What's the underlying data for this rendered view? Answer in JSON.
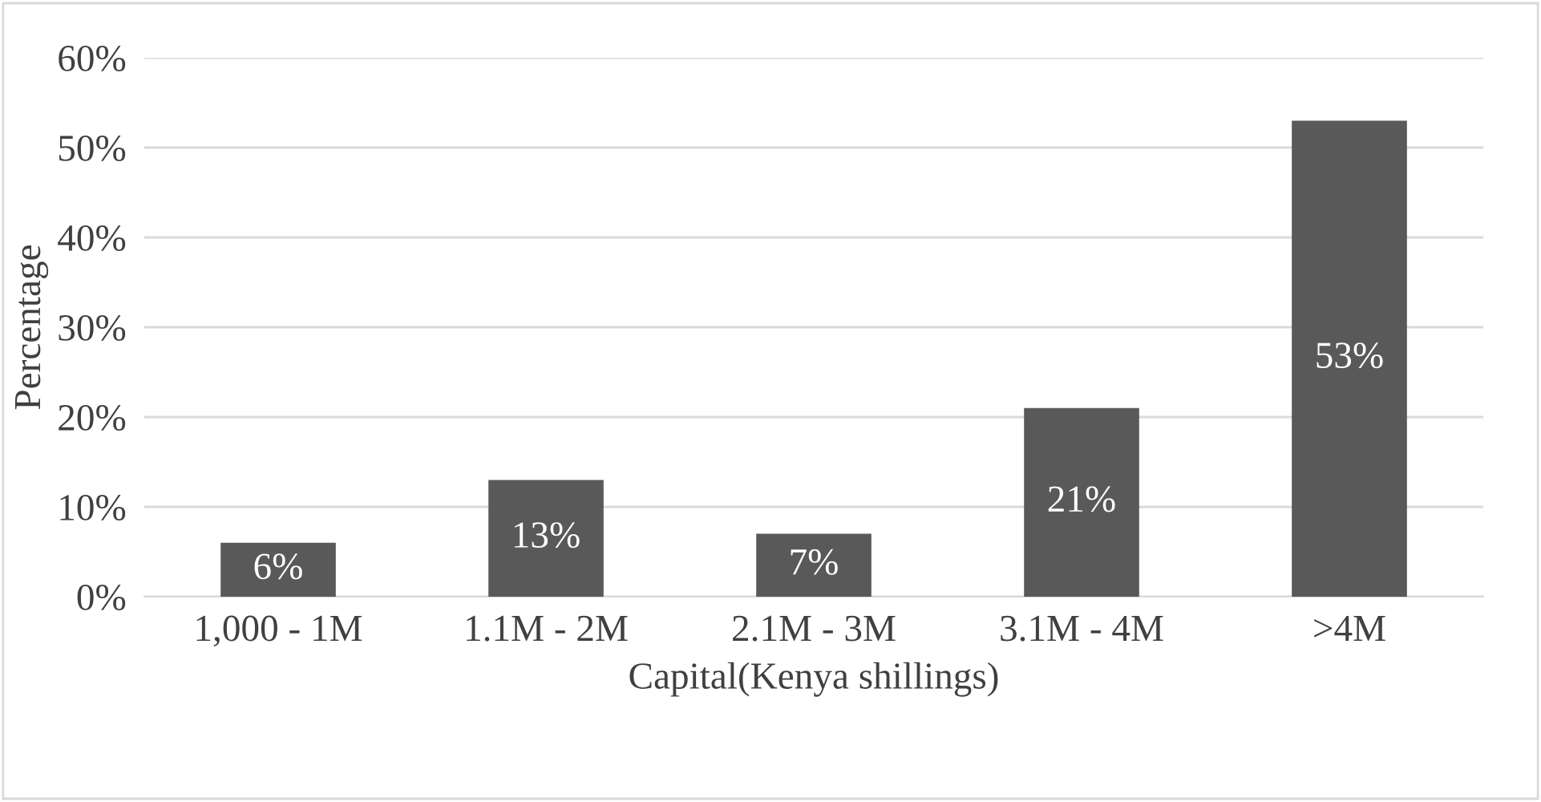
{
  "chart_data": {
    "type": "bar",
    "xlabel": "Capital(Kenya shillings)",
    "ylabel": "Percentage",
    "categories": [
      "1,000 - 1M",
      "1.1M - 2M",
      "2.1M - 3M",
      "3.1M - 4M",
      ">4M"
    ],
    "values": [
      6,
      13,
      7,
      21,
      53
    ],
    "color": "#595959",
    "value_labels": [
      "6%",
      "13%",
      "7%",
      "21%",
      "53%"
    ],
    "ylim": [
      0,
      60
    ],
    "yticks": [
      {
        "value": 0,
        "label": "0%"
      },
      {
        "value": 10,
        "label": "10%"
      },
      {
        "value": 20,
        "label": "20%"
      },
      {
        "value": 30,
        "label": "30%"
      },
      {
        "value": 40,
        "label": "40%"
      },
      {
        "value": 50,
        "label": "50%"
      },
      {
        "value": 60,
        "label": "60%"
      }
    ],
    "grid": "y",
    "legend": false
  }
}
